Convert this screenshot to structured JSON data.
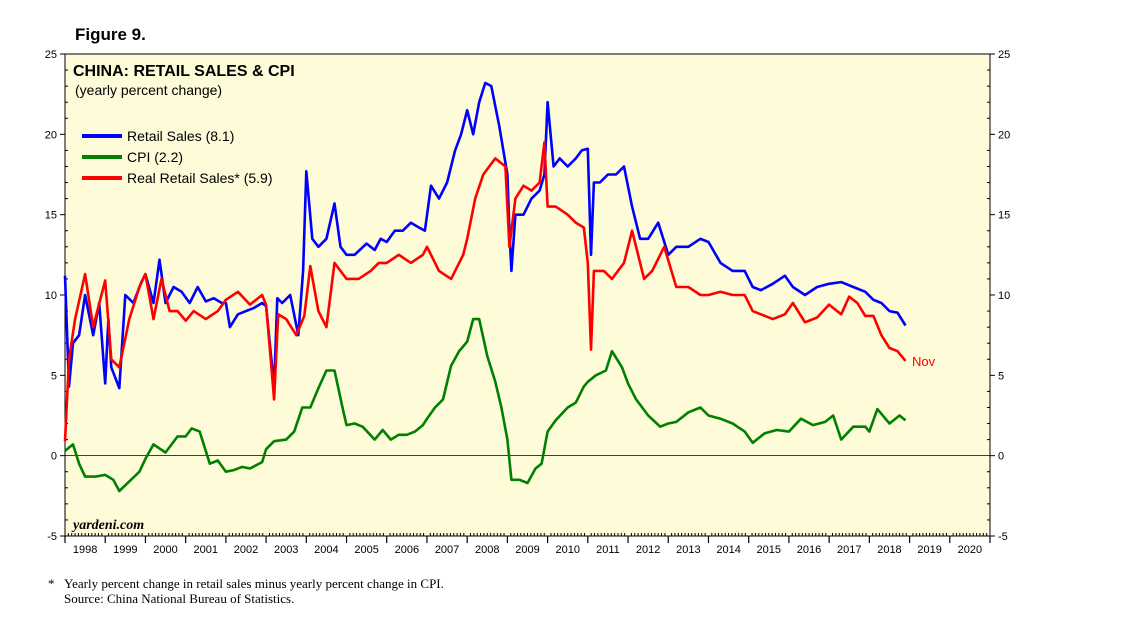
{
  "figure_label": "Figure 9.",
  "footnote": "Yearly percent change in retail sales minus yearly percent change in CPI.",
  "footnote_marker": "*",
  "source": "Source: China National Bureau of Statistics.",
  "colors": {
    "background": "#fdfbd8",
    "retail": "#0000ff",
    "cpi": "#008000",
    "real": "#ff0000"
  },
  "chart_data": {
    "type": "line",
    "title": "CHINA: RETAIL SALES & CPI",
    "subtitle": "(yearly percent change)",
    "watermark": "yardeni.com",
    "end_annotation": "Nov",
    "xlim": [
      1998.0,
      2021.0
    ],
    "ylim": [
      -5,
      25
    ],
    "y_ticks": [
      -5,
      0,
      5,
      10,
      15,
      20,
      25
    ],
    "y_tick_labels": [
      "-5",
      "0",
      "5",
      "10",
      "15",
      "20",
      "25"
    ],
    "x_tick_labels": [
      "1998",
      "1999",
      "2000",
      "2001",
      "2002",
      "2003",
      "2004",
      "2005",
      "2006",
      "2007",
      "2008",
      "2009",
      "2010",
      "2011",
      "2012",
      "2013",
      "2014",
      "2015",
      "2016",
      "2017",
      "2018",
      "2019",
      "2020"
    ],
    "series": [
      {
        "name": "Retail Sales (8.1)",
        "color": "#0000ff",
        "x": [
          1998.0,
          1998.1,
          1998.2,
          1998.35,
          1998.5,
          1998.7,
          1998.85,
          1999.0,
          1999.08,
          1999.15,
          1999.35,
          1999.5,
          1999.7,
          1999.9,
          2000.0,
          2000.2,
          2000.35,
          2000.5,
          2000.7,
          2000.9,
          2001.1,
          2001.3,
          2001.5,
          2001.7,
          2001.9,
          2002.0,
          2002.1,
          2002.3,
          2002.5,
          2002.7,
          2002.9,
          2003.0,
          2003.2,
          2003.28,
          2003.4,
          2003.6,
          2003.8,
          2003.92,
          2004.0,
          2004.15,
          2004.3,
          2004.5,
          2004.7,
          2004.85,
          2005.0,
          2005.2,
          2005.5,
          2005.7,
          2005.85,
          2006.0,
          2006.2,
          2006.4,
          2006.6,
          2006.8,
          2006.95,
          2007.1,
          2007.3,
          2007.5,
          2007.7,
          2007.85,
          2008.0,
          2008.15,
          2008.3,
          2008.45,
          2008.6,
          2008.8,
          2009.0,
          2009.05,
          2009.1,
          2009.2,
          2009.4,
          2009.6,
          2009.8,
          2009.92,
          2010.0,
          2010.15,
          2010.3,
          2010.5,
          2010.7,
          2010.85,
          2011.0,
          2011.08,
          2011.15,
          2011.3,
          2011.5,
          2011.7,
          2011.9,
          2012.1,
          2012.3,
          2012.5,
          2012.75,
          2013.0,
          2013.2,
          2013.5,
          2013.8,
          2014.0,
          2014.3,
          2014.6,
          2014.9,
          2015.1,
          2015.3,
          2015.6,
          2015.9,
          2016.1,
          2016.4,
          2016.7,
          2017.0,
          2017.3,
          2017.6,
          2017.9,
          2018.1,
          2018.3,
          2018.5,
          2018.7,
          2018.9
        ],
        "values": [
          11.2,
          4.3,
          7.0,
          7.5,
          10.0,
          7.5,
          9.5,
          4.5,
          8.5,
          5.5,
          4.2,
          10.0,
          9.5,
          10.8,
          11.3,
          9.5,
          12.2,
          9.5,
          10.5,
          10.2,
          9.5,
          10.5,
          9.6,
          9.8,
          9.5,
          9.5,
          8.0,
          8.8,
          9.0,
          9.2,
          9.5,
          9.3,
          4.3,
          9.8,
          9.5,
          10.0,
          7.5,
          11.5,
          17.7,
          13.5,
          13.0,
          13.5,
          15.7,
          13.0,
          12.5,
          12.5,
          13.2,
          12.8,
          13.5,
          13.3,
          14.0,
          14.0,
          14.5,
          14.2,
          14.0,
          16.8,
          16.0,
          17.0,
          19.0,
          20.0,
          21.5,
          20.0,
          22.0,
          23.2,
          23.0,
          20.5,
          17.5,
          14.0,
          11.5,
          15.0,
          15.0,
          16.0,
          16.5,
          17.5,
          22.0,
          18.0,
          18.5,
          18.0,
          18.5,
          19.0,
          19.1,
          12.5,
          17.0,
          17.0,
          17.5,
          17.5,
          18.0,
          15.5,
          13.5,
          13.5,
          14.5,
          12.5,
          13.0,
          13.0,
          13.5,
          13.3,
          12.0,
          11.5,
          11.5,
          10.5,
          10.3,
          10.7,
          11.2,
          10.5,
          10.0,
          10.5,
          10.7,
          10.8,
          10.5,
          10.2,
          9.7,
          9.5,
          9.0,
          8.9,
          8.1
        ]
      },
      {
        "name": "CPI (2.2)",
        "color": "#008000",
        "x": [
          1998.0,
          1998.2,
          1998.35,
          1998.5,
          1998.75,
          1999.0,
          1999.2,
          1999.35,
          1999.6,
          1999.85,
          2000.0,
          2000.2,
          2000.5,
          2000.8,
          2001.0,
          2001.15,
          2001.35,
          2001.6,
          2001.8,
          2002.0,
          2002.2,
          2002.4,
          2002.6,
          2002.9,
          2003.0,
          2003.2,
          2003.5,
          2003.7,
          2003.9,
          2004.1,
          2004.3,
          2004.5,
          2004.7,
          2004.9,
          2005.0,
          2005.2,
          2005.4,
          2005.7,
          2005.9,
          2006.1,
          2006.3,
          2006.5,
          2006.7,
          2006.9,
          2007.0,
          2007.2,
          2007.4,
          2007.6,
          2007.8,
          2008.0,
          2008.15,
          2008.3,
          2008.5,
          2008.7,
          2008.85,
          2009.0,
          2009.1,
          2009.3,
          2009.5,
          2009.7,
          2009.85,
          2010.0,
          2010.2,
          2010.5,
          2010.7,
          2010.9,
          2011.0,
          2011.2,
          2011.45,
          2011.6,
          2011.85,
          2012.0,
          2012.2,
          2012.5,
          2012.8,
          2013.0,
          2013.2,
          2013.5,
          2013.8,
          2014.0,
          2014.3,
          2014.6,
          2014.9,
          2015.1,
          2015.4,
          2015.7,
          2016.0,
          2016.3,
          2016.6,
          2016.9,
          2017.1,
          2017.3,
          2017.6,
          2017.9,
          2018.0,
          2018.2,
          2018.5,
          2018.75,
          2018.9
        ],
        "values": [
          0.3,
          0.7,
          -0.5,
          -1.3,
          -1.3,
          -1.2,
          -1.5,
          -2.2,
          -1.6,
          -1.0,
          -0.2,
          0.7,
          0.2,
          1.2,
          1.2,
          1.7,
          1.5,
          -0.5,
          -0.3,
          -1.0,
          -0.9,
          -0.7,
          -0.8,
          -0.4,
          0.4,
          0.9,
          1.0,
          1.5,
          3.0,
          3.0,
          4.2,
          5.3,
          5.3,
          3.0,
          1.9,
          2.0,
          1.8,
          1.0,
          1.6,
          1.0,
          1.3,
          1.3,
          1.5,
          1.9,
          2.3,
          3.0,
          3.5,
          5.6,
          6.5,
          7.1,
          8.5,
          8.5,
          6.2,
          4.6,
          3.0,
          1.0,
          -1.5,
          -1.5,
          -1.7,
          -0.8,
          -0.5,
          1.5,
          2.2,
          3.0,
          3.3,
          4.3,
          4.6,
          5.0,
          5.3,
          6.5,
          5.5,
          4.5,
          3.5,
          2.5,
          1.8,
          2.0,
          2.1,
          2.7,
          3.0,
          2.5,
          2.3,
          2.0,
          1.5,
          0.8,
          1.4,
          1.6,
          1.5,
          2.3,
          1.9,
          2.1,
          2.5,
          1.0,
          1.8,
          1.8,
          1.5,
          2.9,
          2.0,
          2.5,
          2.2
        ]
      },
      {
        "name": "Real Retail Sales* (5.9)",
        "color": "#ff0000",
        "x": [
          1998.0,
          1998.1,
          1998.25,
          1998.5,
          1998.7,
          1999.0,
          1999.15,
          1999.35,
          1999.6,
          1999.85,
          2000.0,
          2000.2,
          2000.4,
          2000.6,
          2000.8,
          2001.0,
          2001.2,
          2001.5,
          2001.8,
          2002.0,
          2002.3,
          2002.6,
          2002.9,
          2003.0,
          2003.2,
          2003.3,
          2003.5,
          2003.75,
          2003.95,
          2004.1,
          2004.3,
          2004.5,
          2004.7,
          2005.0,
          2005.3,
          2005.6,
          2005.8,
          2006.0,
          2006.3,
          2006.6,
          2006.9,
          2007.0,
          2007.3,
          2007.6,
          2007.9,
          2008.0,
          2008.2,
          2008.4,
          2008.7,
          2008.95,
          2009.05,
          2009.2,
          2009.4,
          2009.6,
          2009.8,
          2009.92,
          2010.0,
          2010.2,
          2010.5,
          2010.7,
          2010.9,
          2011.0,
          2011.08,
          2011.15,
          2011.4,
          2011.6,
          2011.9,
          2012.1,
          2012.4,
          2012.6,
          2012.9,
          2013.2,
          2013.5,
          2013.8,
          2014.0,
          2014.3,
          2014.6,
          2014.9,
          2015.1,
          2015.3,
          2015.6,
          2015.9,
          2016.1,
          2016.4,
          2016.7,
          2017.0,
          2017.3,
          2017.5,
          2017.7,
          2017.9,
          2018.1,
          2018.3,
          2018.5,
          2018.7,
          2018.9
        ],
        "values": [
          0.9,
          6.0,
          8.5,
          11.3,
          8.0,
          10.9,
          6.0,
          5.5,
          8.5,
          10.5,
          11.3,
          8.5,
          11.0,
          9.0,
          9.0,
          8.4,
          9.0,
          8.5,
          9.0,
          9.7,
          10.2,
          9.4,
          10.0,
          9.4,
          3.5,
          8.8,
          8.5,
          7.5,
          8.7,
          11.8,
          9.0,
          8.0,
          12.0,
          11.0,
          11.0,
          11.5,
          12.0,
          12.0,
          12.5,
          12.0,
          12.5,
          13.0,
          11.5,
          11.0,
          12.5,
          13.5,
          16.0,
          17.5,
          18.5,
          18.0,
          13.0,
          16.0,
          16.8,
          16.5,
          17.0,
          19.5,
          15.5,
          15.5,
          15.0,
          14.5,
          14.2,
          12.0,
          6.6,
          11.5,
          11.5,
          11.0,
          12.0,
          14.0,
          11.0,
          11.5,
          13.0,
          10.5,
          10.5,
          10.0,
          10.0,
          10.2,
          10.0,
          10.0,
          9.0,
          8.8,
          8.5,
          8.8,
          9.5,
          8.3,
          8.6,
          9.4,
          8.8,
          9.9,
          9.5,
          8.7,
          8.7,
          7.5,
          6.7,
          6.5,
          5.9
        ]
      }
    ]
  }
}
